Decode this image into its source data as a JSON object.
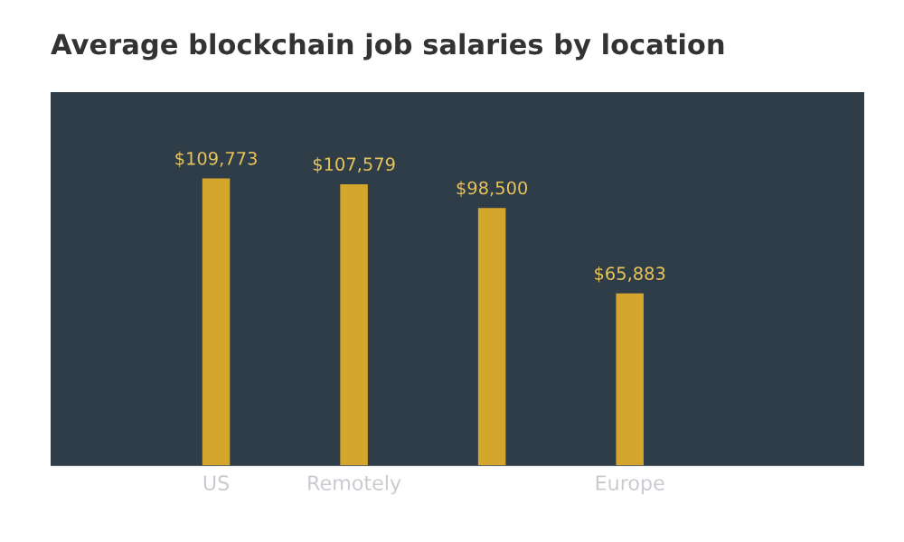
{
  "chart_data": {
    "type": "bar",
    "title": "Average blockchain job salaries by location",
    "categories": [
      "US",
      "Remotely",
      null,
      "Europe"
    ],
    "values": [
      109773,
      107579,
      98500,
      65883
    ],
    "value_labels": [
      "$109,773",
      "$107,579",
      "$98,500",
      "$65,883"
    ],
    "color": "#d4a72c",
    "grid": false,
    "legend": false
  }
}
